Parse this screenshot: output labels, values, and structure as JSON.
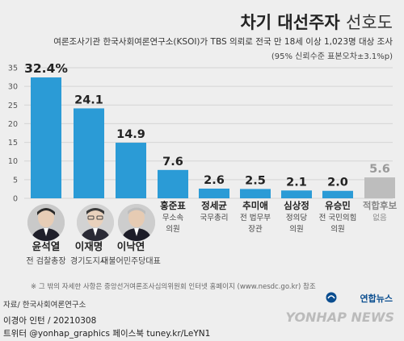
{
  "title": {
    "bold": "차기 대선주자",
    "light": "선호도"
  },
  "subtitle": {
    "line1": "여론조사기관 한국사회여론연구소(KSOI)가 TBS 의뢰로 전국 만 18세 이상 1,023명 대상 조사",
    "line2": "(95% 신뢰수준 표본오차±3.1%p)"
  },
  "chart_data": {
    "type": "bar",
    "title": "차기 대선주자 선호도",
    "categories": [
      "윤석열",
      "이재명",
      "이낙연",
      "홍준표",
      "정세균",
      "추미애",
      "심상정",
      "유승민",
      "적합후보 없음"
    ],
    "category_lines": [
      [
        "윤석열",
        "전 검찰총장"
      ],
      [
        "이재명",
        "경기도지사"
      ],
      [
        "이낙연",
        "더불어민주당대표"
      ],
      [
        "홍준표",
        "무소속",
        "의원"
      ],
      [
        "정세균",
        "국무총리"
      ],
      [
        "추미애",
        "전 법무부",
        "장관"
      ],
      [
        "심상정",
        "정의당",
        "의원"
      ],
      [
        "유승민",
        "전 국민의힘",
        "의원"
      ],
      [
        "적합후보",
        "없음"
      ]
    ],
    "values": [
      32.4,
      24.1,
      14.9,
      7.6,
      2.6,
      2.5,
      2.1,
      2.0,
      5.6
    ],
    "value_labels": [
      "32.4%",
      "24.1",
      "14.9",
      "7.6",
      "2.6",
      "2.5",
      "2.1",
      "2.0",
      "5.6"
    ],
    "yticks": [
      "35",
      "30",
      "25",
      "20",
      "15",
      "10",
      "5",
      "0"
    ],
    "ylim": [
      0,
      35
    ],
    "xlabel": "",
    "ylabel": "",
    "grid": true,
    "colors": {
      "bar": "#2b9bd6",
      "bar_none": "#bdbdbd",
      "label_none": "#9a9a9a",
      "grid": "#d4d4d4",
      "value": "#222222"
    }
  },
  "footnote": "※ 그 밖의 자세한 사항은 중앙선거여론조사심의위원회 인터넷 홈페이지 (www.nesdc.go.kr) 참조",
  "source": "자료/ 한국사회여론연구소",
  "credit": "이경아 인턴 / 20210308",
  "social": "트위터 @yonhap_graphics  페이스북 tuney.kr/LeYN1",
  "brand": {
    "ko": "연합뉴스",
    "en": "YONHAP NEWS"
  },
  "icons": [
    "person-photo-icon",
    "yonhap-logo-icon"
  ]
}
